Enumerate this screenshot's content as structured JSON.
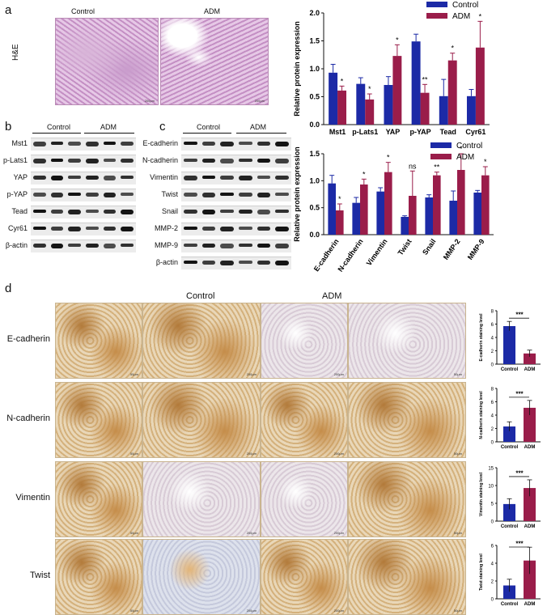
{
  "panels": {
    "a": "a",
    "b": "b",
    "c": "c",
    "d": "d"
  },
  "panel_a": {
    "side_label": "H&E",
    "image_titles": [
      "Control",
      "ADM"
    ],
    "scale_labels": [
      "200μm",
      "200μm"
    ]
  },
  "panel_b": {
    "group_labels": [
      "Control",
      "ADM"
    ],
    "rows": [
      "Mst1",
      "p-Lats1",
      "YAP",
      "p-YAP",
      "Tead",
      "Cyr61",
      "β-actin"
    ]
  },
  "panel_c": {
    "group_labels": [
      "Control",
      "ADM"
    ],
    "rows": [
      "E-cadherin",
      "N-cadherin",
      "Vimentin",
      "Twist",
      "Snail",
      "MMP-2",
      "MMP-9",
      "β-actin"
    ]
  },
  "panel_d": {
    "group_labels": [
      "Control",
      "ADM"
    ],
    "rows": [
      "E-cadherin",
      "N-cadherin",
      "Vimentin",
      "Twist"
    ],
    "scale_labels": [
      "50μm",
      "200μm"
    ]
  },
  "colors": {
    "control": "#1c2aa6",
    "adm": "#9a1d4a"
  },
  "chart_data": [
    {
      "type": "bar",
      "ylabel": "Relative protein expression",
      "ylim": [
        0,
        2.0
      ],
      "yticks": [
        "0.0",
        "0.5",
        "1.0",
        "1.5",
        "2.0"
      ],
      "legend": "top-right",
      "categories": [
        "Mst1",
        "p-Lats1",
        "YAP",
        "p-YAP",
        "Tead",
        "Cyr61"
      ],
      "series": [
        {
          "name": "Control",
          "values": [
            0.93,
            0.73,
            0.71,
            1.49,
            0.51,
            0.51
          ],
          "errors": [
            0.15,
            0.11,
            0.15,
            0.13,
            0.3,
            0.12
          ]
        },
        {
          "name": "ADM",
          "values": [
            0.61,
            0.45,
            1.23,
            0.57,
            1.15,
            1.38
          ],
          "errors": [
            0.08,
            0.1,
            0.2,
            0.15,
            0.13,
            0.47
          ]
        }
      ],
      "significance": [
        "*",
        "*",
        "*",
        "**",
        "*",
        "*"
      ]
    },
    {
      "type": "bar",
      "ylabel": "Relative protein expression",
      "ylim": [
        0,
        1.5
      ],
      "yticks": [
        "0.0",
        "0.5",
        "1.0",
        "1.5"
      ],
      "legend": "top-right",
      "categories": [
        "E-cadherin",
        "N-cadherin",
        "Vimentin",
        "Twist",
        "Snail",
        "MMP-2",
        "MMP-9"
      ],
      "series": [
        {
          "name": "Control",
          "values": [
            0.95,
            0.59,
            0.8,
            0.33,
            0.69,
            0.63,
            0.78
          ],
          "errors": [
            0.15,
            0.1,
            0.07,
            0.02,
            0.05,
            0.18,
            0.04
          ]
        },
        {
          "name": "ADM",
          "values": [
            0.45,
            0.93,
            1.16,
            0.72,
            1.1,
            1.2,
            1.1
          ],
          "errors": [
            0.12,
            0.1,
            0.18,
            0.46,
            0.06,
            0.3,
            0.16
          ]
        }
      ],
      "significance": [
        "*",
        "*",
        "*",
        "ns",
        "**",
        "*",
        "*"
      ]
    },
    {
      "type": "bar",
      "ylabel": "E-cadherin staining level",
      "ylim": [
        0,
        8
      ],
      "yticks": [
        "0",
        "2",
        "4",
        "6",
        "8"
      ],
      "categories": [
        "Control",
        "ADM"
      ],
      "values": [
        5.7,
        1.6
      ],
      "errors": [
        0.7,
        0.5
      ],
      "significance": "***"
    },
    {
      "type": "bar",
      "ylabel": "N-cadherin staining level",
      "ylim": [
        0,
        8
      ],
      "yticks": [
        "0",
        "2",
        "4",
        "6",
        "8"
      ],
      "categories": [
        "Control",
        "ADM"
      ],
      "values": [
        2.3,
        5.1
      ],
      "errors": [
        0.7,
        1.1
      ],
      "significance": "***"
    },
    {
      "type": "bar",
      "ylabel": "Vimentin staining level",
      "ylim": [
        0,
        15
      ],
      "yticks": [
        "0",
        "5",
        "10",
        "15"
      ],
      "categories": [
        "Control",
        "ADM"
      ],
      "values": [
        4.8,
        9.3
      ],
      "errors": [
        1.5,
        2.3
      ],
      "significance": "***"
    },
    {
      "type": "bar",
      "ylabel": "Twist staining level",
      "ylim": [
        0,
        6
      ],
      "yticks": [
        "0",
        "2",
        "4",
        "6"
      ],
      "categories": [
        "Control",
        "ADM"
      ],
      "values": [
        1.5,
        4.3
      ],
      "errors": [
        0.7,
        1.5
      ],
      "significance": "***"
    }
  ]
}
